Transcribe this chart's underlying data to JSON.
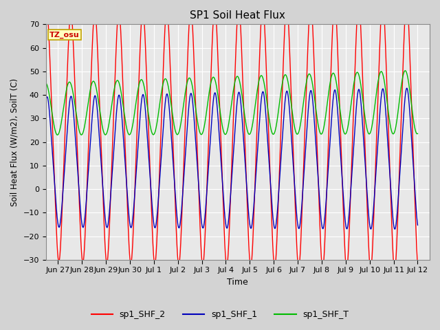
{
  "title": "SP1 Soil Heat Flux",
  "ylabel": "Soil Heat Flux (W/m2), SoilT (C)",
  "xlabel": "Time",
  "ylim": [
    -30,
    70
  ],
  "yticks": [
    -30,
    -20,
    -10,
    0,
    10,
    20,
    30,
    40,
    50,
    60,
    70
  ],
  "background_color": "#d3d3d3",
  "plot_bg_color": "#e8e8e8",
  "grid_color": "#ffffff",
  "line_colors": {
    "shf2": "#ff0000",
    "shf1": "#0000bb",
    "shfT": "#00bb00"
  },
  "legend_labels": [
    "sp1_SHF_2",
    "sp1_SHF_1",
    "sp1_SHF_T"
  ],
  "tz_label": "TZ_osu",
  "xtick_labels": [
    "Jun 27",
    "Jun 28",
    "Jun 29",
    "Jun 30",
    "Jul 1",
    "Jul 2",
    "Jul 3",
    "Jul 4",
    "Jul 5",
    "Jul 6",
    "Jul 7",
    "Jul 8",
    "Jul 9",
    "Jul 10",
    "Jul 11",
    "Jul 12"
  ]
}
